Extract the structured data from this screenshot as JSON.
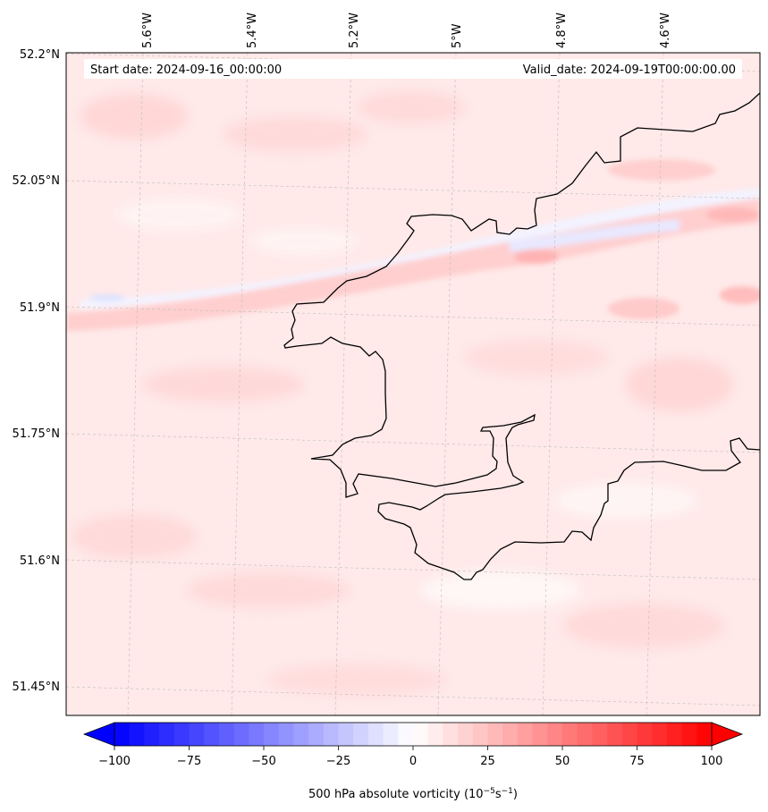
{
  "header": {
    "start_date": "Start date: 2024-09-16_00:00:00",
    "valid_date": "Valid_date: 2024-09-19T00:00:00.00"
  },
  "map": {
    "variable": "500 hPa absolute vorticity",
    "lon_labels": [
      "5.6°W",
      "5.4°W",
      "5.2°W",
      "5°W",
      "4.8°W",
      "4.6°W"
    ],
    "lat_labels": [
      "52.2°N",
      "52.05°N",
      "51.9°N",
      "51.75°N",
      "51.6°N",
      "51.45°N"
    ]
  },
  "colorbar": {
    "min": -100,
    "max": 100,
    "ticks": [
      "−100",
      "−75",
      "−50",
      "−25",
      "0",
      "25",
      "50",
      "75",
      "100"
    ],
    "label_main": "500 hPa absolute vorticity (10",
    "label_exp1": "−5",
    "label_mid": "s",
    "label_exp2": "−1",
    "label_end": ")",
    "colors": {
      "negative": "#0000ff",
      "zero": "#ffffff",
      "positive": "#ff0000"
    }
  }
}
